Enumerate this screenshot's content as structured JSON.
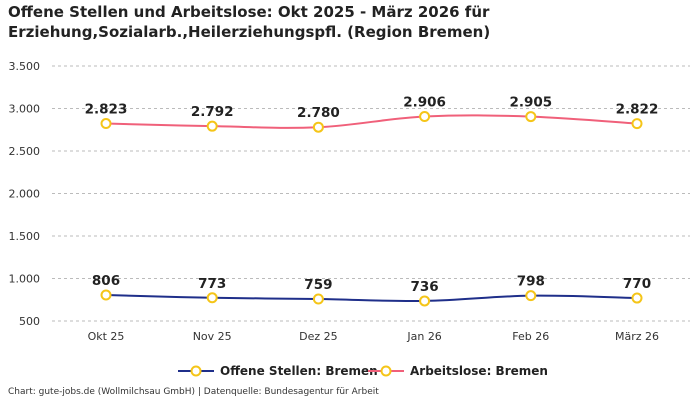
{
  "title": "Offene Stellen und Arbeitslose: Okt 2025 - März 2026 für Erziehung,Sozialarb.,Heilerziehungspfl. (Region Bremen)",
  "footer": "Chart: gute-jobs.de (Wollmilchsau GmbH) | Datenquelle: Bundesagentur für Arbeit",
  "chart_data": {
    "type": "line",
    "title": "Offene Stellen und Arbeitslose: Okt 2025 - März 2026 für Erziehung,Sozialarb.,Heilerziehungspfl. (Region Bremen)",
    "categories": [
      "Okt 25",
      "Nov 25",
      "Dez 25",
      "Jan 26",
      "Feb 26",
      "März 26"
    ],
    "series": [
      {
        "name": "Offene Stellen: Bremen",
        "values": [
          806,
          773,
          759,
          736,
          798,
          770
        ],
        "labels": [
          "806",
          "773",
          "759",
          "736",
          "798",
          "770"
        ],
        "color": "#1f2f8a"
      },
      {
        "name": "Arbeitslose: Bremen",
        "values": [
          2823,
          2792,
          2780,
          2906,
          2905,
          2822
        ],
        "labels": [
          "2.823",
          "2.792",
          "2.780",
          "2.906",
          "2.905",
          "2.822"
        ],
        "color": "#f0607a"
      }
    ],
    "marker_color": "#f5c518",
    "ylim": [
      500,
      3500
    ],
    "yticks": [
      500,
      1000,
      1500,
      2000,
      2500,
      3000,
      3500
    ],
    "ytick_labels": [
      "500",
      "1.000",
      "1.500",
      "2.000",
      "2.500",
      "3.000",
      "3.500"
    ],
    "grid": true,
    "legend_position": "bottom"
  }
}
